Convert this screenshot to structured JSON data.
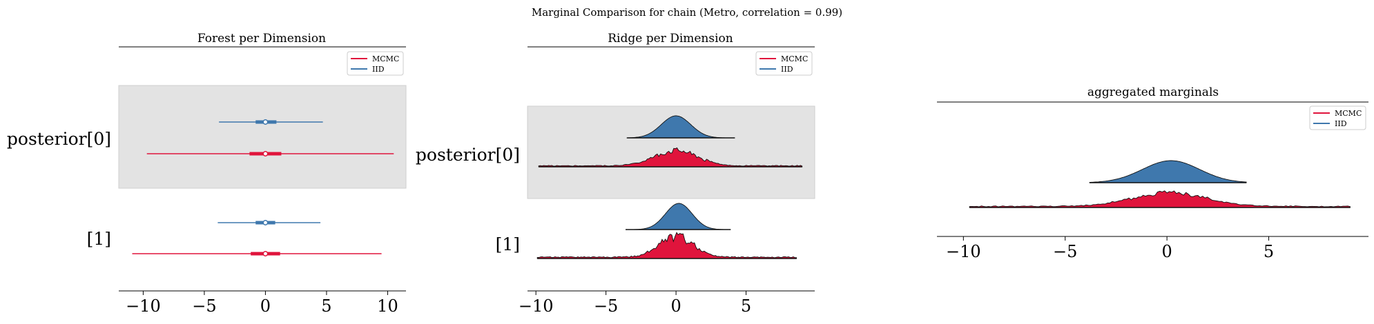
{
  "suptitle": "Marginal Comparison for chain (Metro, correlation = 0.99)",
  "colors": {
    "mcmc": "#e0143c",
    "iid": "#3f78ad",
    "band": "#e3e3e3",
    "band_edge": "#cfcfcf",
    "axis": "#000000"
  },
  "legend": {
    "labels": [
      "MCMC",
      "IID"
    ]
  },
  "chart_data": [
    {
      "type": "forest",
      "title": "Forest per Dimension",
      "xlim": [
        -12,
        11.5
      ],
      "xticks": [
        -10,
        -5,
        0,
        5,
        10
      ],
      "xtick_labels": [
        "−10",
        "−5",
        "0",
        "5",
        "10"
      ],
      "rows": [
        {
          "label": "posterior[0]",
          "shaded": true,
          "series": [
            {
              "name": "IID",
              "median": 0.0,
              "iqr": [
                -0.8,
                0.9
              ],
              "range": [
                -3.8,
                4.7
              ]
            },
            {
              "name": "MCMC",
              "median": 0.0,
              "iqr": [
                -1.3,
                1.3
              ],
              "range": [
                -9.7,
                10.5
              ]
            }
          ]
        },
        {
          "label": "[1]",
          "shaded": false,
          "series": [
            {
              "name": "IID",
              "median": 0.0,
              "iqr": [
                -0.8,
                0.8
              ],
              "range": [
                -3.9,
                4.5
              ]
            },
            {
              "name": "MCMC",
              "median": 0.0,
              "iqr": [
                -1.2,
                1.2
              ],
              "range": [
                -10.9,
                9.5
              ]
            }
          ]
        }
      ]
    },
    {
      "type": "ridge",
      "title": "Ridge per Dimension",
      "xlim": [
        -10.6,
        9.9
      ],
      "xticks": [
        -10,
        -5,
        0,
        5
      ],
      "xtick_labels": [
        "−10",
        "−5",
        "0",
        "5"
      ],
      "rows": [
        {
          "label": "posterior[0]",
          "shaded": true,
          "series": [
            {
              "name": "IID",
              "range": [
                -3.5,
                4.2
              ],
              "peak": 0.0,
              "sd": 1.05,
              "height": 1.0,
              "noise": 0.0
            },
            {
              "name": "MCMC",
              "range": [
                -9.8,
                9.0
              ],
              "peak": 0.0,
              "sd": 1.5,
              "height": 0.95,
              "noise": 0.25
            }
          ]
        },
        {
          "label": "[1]",
          "shaded": false,
          "series": [
            {
              "name": "IID",
              "range": [
                -3.6,
                3.9
              ],
              "peak": 0.2,
              "sd": 0.95,
              "height": 1.0,
              "noise": 0.0
            },
            {
              "name": "MCMC",
              "range": [
                -9.9,
                8.6
              ],
              "peak": 0.0,
              "sd": 1.2,
              "height": 1.0,
              "noise": 0.3
            }
          ]
        }
      ]
    },
    {
      "type": "ridge",
      "title": "aggregated marginals",
      "xlim": [
        -11.3,
        9.9
      ],
      "xticks": [
        -10,
        -5,
        0,
        5
      ],
      "xtick_labels": [
        "−10",
        "−5",
        "0",
        "5"
      ],
      "rows": [
        {
          "label": "",
          "shaded": false,
          "series": [
            {
              "name": "IID",
              "range": [
                -3.8,
                3.9
              ],
              "peak": 0.2,
              "sd": 1.4,
              "height": 1.0,
              "noise": 0.0
            },
            {
              "name": "MCMC",
              "range": [
                -9.7,
                9.0
              ],
              "peak": 0.1,
              "sd": 1.8,
              "height": 0.75,
              "noise": 0.2
            }
          ]
        }
      ]
    }
  ]
}
